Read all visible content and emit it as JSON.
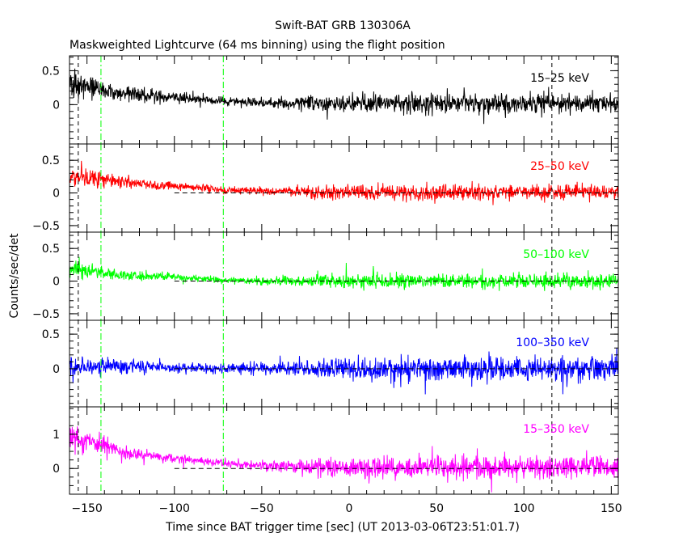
{
  "chart_data": {
    "type": "line",
    "title": "Swift-BAT GRB 130306A",
    "subtitle": "Maskweighted Lightcurve (64 ms binning) using the flight position",
    "xlabel": "Time since BAT trigger time [sec] (UT 2013-03-06T23:51:01.7)",
    "ylabel": "Counts/sec/det",
    "xlim": [
      -160,
      154
    ],
    "xticks": [
      -150,
      -100,
      -50,
      0,
      50,
      100,
      150
    ],
    "xtick_labels": [
      "−150",
      "−100",
      "−50",
      "0",
      "50",
      "100",
      "150"
    ],
    "panels": [
      {
        "name": "15-25 keV",
        "label": "15–25 keV",
        "color": "#000000",
        "ylim": [
          -0.58,
          0.72
        ],
        "yticks": [
          0,
          0.5
        ],
        "ytick_labels": [
          "0",
          "0.5"
        ],
        "zero_line": false,
        "envelope": {
          "x": [
            -160,
            -150,
            -140,
            -130,
            -100,
            -70,
            -50,
            -25,
            -20,
            0,
            50,
            100,
            154
          ],
          "mean": [
            0.3,
            0.27,
            0.22,
            0.17,
            0.11,
            0.05,
            0.02,
            0.02,
            0.02,
            0.02,
            0.02,
            0.02,
            0.02
          ],
          "noise": [
            0.16,
            0.15,
            0.13,
            0.11,
            0.07,
            0.05,
            0.06,
            0.08,
            0.12,
            0.13,
            0.13,
            0.13,
            0.13
          ]
        }
      },
      {
        "name": "25-50 keV",
        "label": "25–50 keV",
        "color": "#ff0000",
        "ylim": [
          -0.6,
          0.75
        ],
        "yticks": [
          -0.5,
          0,
          0.5
        ],
        "ytick_labels": [
          "−0.5",
          "0",
          "0.5"
        ],
        "zero_line": true,
        "envelope": {
          "x": [
            -160,
            -150,
            -140,
            -130,
            -100,
            -70,
            -50,
            -25,
            -20,
            0,
            50,
            100,
            154
          ],
          "mean": [
            0.25,
            0.24,
            0.22,
            0.16,
            0.1,
            0.05,
            0.03,
            0.02,
            0.01,
            0.01,
            0.01,
            0.01,
            0.01
          ],
          "noise": [
            0.13,
            0.12,
            0.1,
            0.08,
            0.05,
            0.05,
            0.05,
            0.07,
            0.1,
            0.11,
            0.11,
            0.11,
            0.11
          ]
        }
      },
      {
        "name": "50-100 keV",
        "label": "50–100 keV",
        "color": "#00ff00",
        "ylim": [
          -0.6,
          0.75
        ],
        "yticks": [
          -0.5,
          0,
          0.5
        ],
        "ytick_labels": [
          "−0.5",
          "0",
          "0.5"
        ],
        "zero_line": true,
        "envelope": {
          "x": [
            -160,
            -150,
            -140,
            -130,
            -100,
            -70,
            -50,
            -25,
            -20,
            0,
            50,
            100,
            154
          ],
          "mean": [
            0.18,
            0.16,
            0.13,
            0.09,
            0.06,
            0.02,
            0.0,
            0.0,
            0.0,
            0.0,
            0.0,
            0.0,
            0.0
          ],
          "noise": [
            0.12,
            0.11,
            0.09,
            0.07,
            0.05,
            0.04,
            0.05,
            0.07,
            0.09,
            0.1,
            0.1,
            0.1,
            0.1
          ]
        }
      },
      {
        "name": "100-350 keV",
        "label": "100–350 keV",
        "color": "#0000ff",
        "ylim": [
          -0.55,
          0.7
        ],
        "yticks": [
          0,
          0.5
        ],
        "ytick_labels": [
          "0",
          "0.5"
        ],
        "zero_line": true,
        "envelope": {
          "x": [
            -160,
            -150,
            -140,
            -130,
            -100,
            -70,
            -50,
            -25,
            -20,
            0,
            50,
            100,
            154
          ],
          "mean": [
            0.03,
            0.03,
            0.03,
            0.03,
            0.02,
            0.0,
            0.0,
            0.0,
            0.0,
            0.0,
            0.0,
            0.0,
            0.0
          ],
          "noise": [
            0.13,
            0.12,
            0.11,
            0.1,
            0.07,
            0.06,
            0.07,
            0.1,
            0.13,
            0.15,
            0.16,
            0.16,
            0.16
          ]
        }
      },
      {
        "name": "15-350 keV",
        "label": "15–350 keV",
        "color": "#ff00ff",
        "ylim": [
          -0.75,
          1.8
        ],
        "yticks": [
          0,
          1
        ],
        "ytick_labels": [
          "0",
          "1"
        ],
        "zero_line": true,
        "envelope": {
          "x": [
            -160,
            -150,
            -140,
            -130,
            -100,
            -70,
            -50,
            -25,
            -20,
            0,
            50,
            100,
            154
          ],
          "mean": [
            0.85,
            0.8,
            0.7,
            0.45,
            0.3,
            0.15,
            0.08,
            0.05,
            0.04,
            0.04,
            0.04,
            0.04,
            0.04
          ],
          "noise": [
            0.3,
            0.28,
            0.25,
            0.18,
            0.12,
            0.1,
            0.12,
            0.18,
            0.25,
            0.28,
            0.28,
            0.28,
            0.28
          ]
        }
      }
    ],
    "markers": [
      {
        "x": -155,
        "color": "#000000",
        "style": "dashed"
      },
      {
        "x": -142,
        "color": "#00ff00",
        "style": "dashdot"
      },
      {
        "x": -72,
        "color": "#00ff00",
        "style": "dashdot"
      },
      {
        "x": 116,
        "color": "#000000",
        "style": "dashed"
      }
    ]
  }
}
